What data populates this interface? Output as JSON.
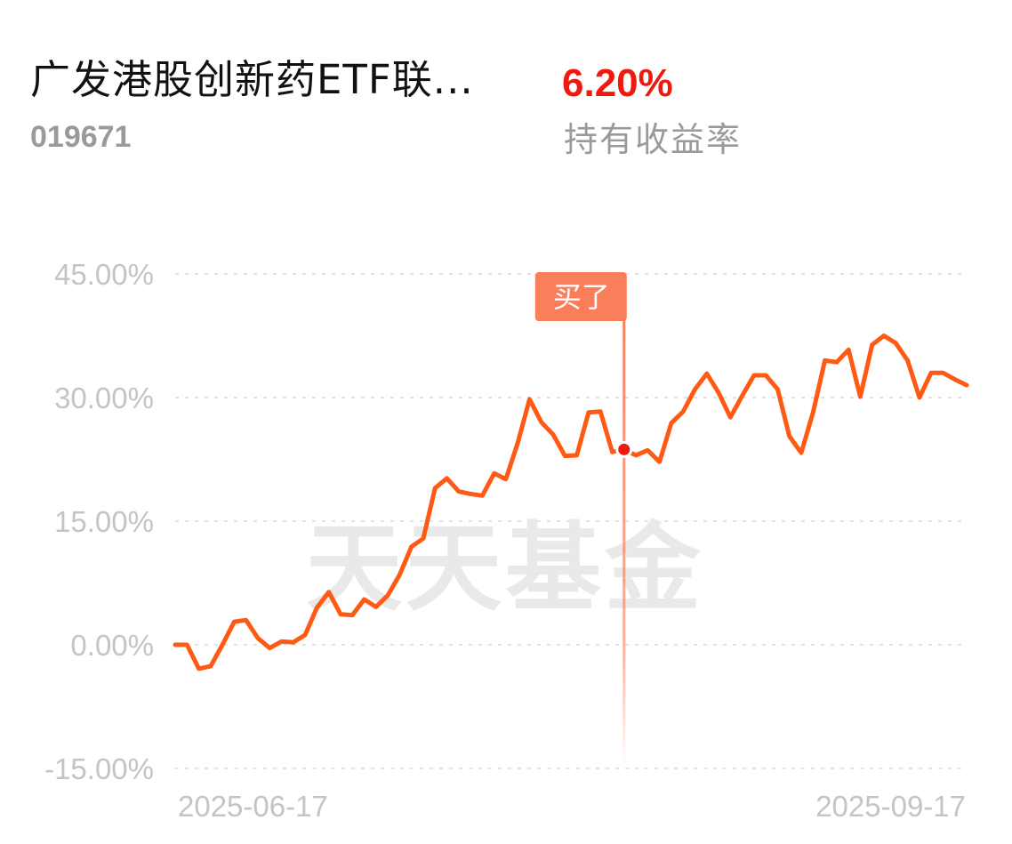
{
  "fund": {
    "name": "广发港股创新药ETF联...",
    "code": "019671"
  },
  "holding": {
    "yield_value": "6.20%",
    "yield_label": "持有收益率"
  },
  "watermark": "天天基金",
  "buy_marker": {
    "label": "买了",
    "index": 38
  },
  "colors": {
    "line": "#ff5a14",
    "yield_positive": "#f0190f",
    "buy_marker": "#fb7e5b"
  },
  "chart_data": {
    "type": "line",
    "title": "",
    "xlabel": "",
    "ylabel": "",
    "ylim": [
      -15,
      45
    ],
    "y_ticks": [
      45,
      30,
      15,
      0,
      -15
    ],
    "y_tick_labels": [
      "45.00%",
      "30.00%",
      "15.00%",
      "0.00%",
      "-15.00%"
    ],
    "x_start_label": "2025-06-17",
    "x_end_label": "2025-09-17",
    "grid": true,
    "legend": "none",
    "series": [
      {
        "values": [
          0,
          0,
          -2.9,
          -2.6,
          0,
          2.8,
          3.0,
          0.8,
          -0.4,
          0.4,
          0.3,
          1.2,
          4.5,
          6.4,
          3.7,
          3.6,
          5.5,
          4.6,
          6.0,
          8.5,
          11.9,
          12.9,
          19.0,
          20.2,
          18.6,
          18.3,
          18.1,
          20.8,
          20.1,
          24.5,
          29.8,
          27.0,
          25.5,
          22.9,
          23.0,
          28.2,
          28.3,
          23.4,
          23.7,
          23.0,
          23.6,
          22.2,
          26.9,
          28.3,
          31.0,
          32.9,
          30.6,
          27.6,
          30.2,
          32.7,
          32.7,
          31.0,
          25.3,
          23.3,
          28.2,
          34.5,
          34.3,
          35.8,
          30.1,
          36.4,
          37.5,
          36.6,
          34.5,
          30.0,
          33.0,
          33.0,
          32.2,
          31.5
        ]
      }
    ]
  }
}
